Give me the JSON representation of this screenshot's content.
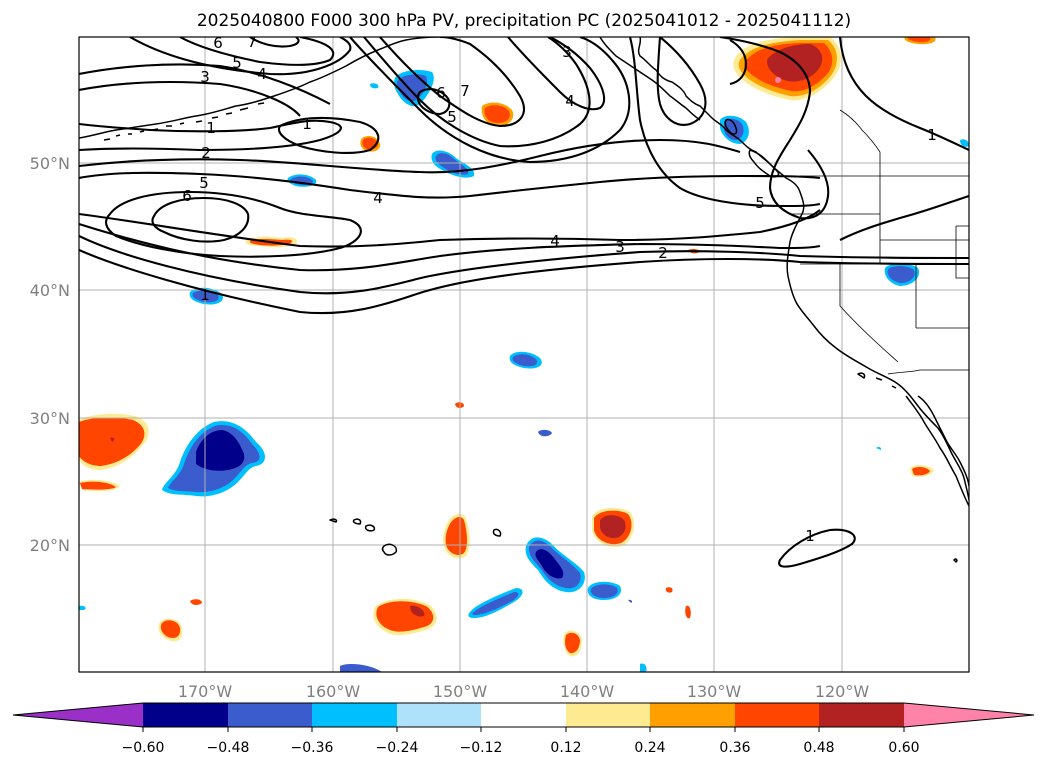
{
  "title": "2025040800 F000 300 hPa PV, precipitation PC (2025041012 - 2025041112)",
  "map": {
    "lat_labels": [
      "50°N",
      "40°N",
      "30°N",
      "20°N"
    ],
    "lon_labels": [
      "170°W",
      "160°W",
      "150°W",
      "140°W",
      "130°W",
      "120°W"
    ],
    "pv_contour_labels": [
      "6",
      "7",
      "5",
      "4",
      "3",
      "1",
      "2",
      "5",
      "6",
      "1",
      "4",
      "6",
      "7",
      "5",
      "3",
      "4",
      "5",
      "4",
      "3",
      "2",
      "1",
      "1",
      "1"
    ]
  },
  "colorbar": {
    "colors": [
      "#9b30c8",
      "#00008b",
      "#3a5ccc",
      "#00bfff",
      "#aee2fb",
      "#ffffff",
      "#feea90",
      "#ffa000",
      "#ff4500",
      "#b22222",
      "#ff82a8"
    ],
    "tick_labels": [
      "−0.60",
      "−0.48",
      "−0.36",
      "−0.24",
      "−0.12",
      "0.12",
      "0.24",
      "0.36",
      "0.48",
      "0.60"
    ]
  }
}
